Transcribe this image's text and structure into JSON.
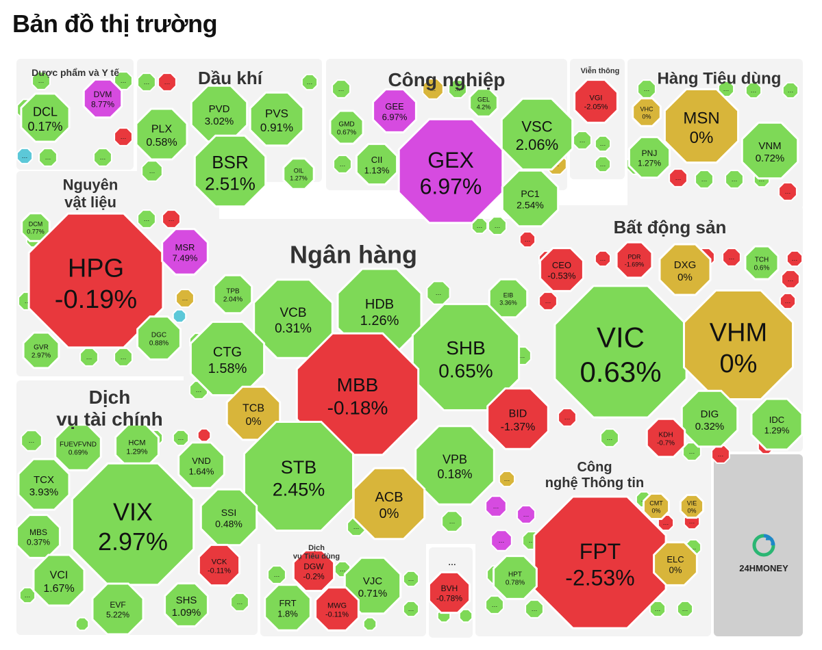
{
  "page_title": "Bản đồ thị trường",
  "logo_text": "24HMONEY",
  "colors": {
    "up": "#7ed957",
    "down": "#e8383d",
    "flat": "#d8b53a",
    "ceiling": "#d64be0",
    "floor": "#5cc8d8",
    "background": "#f3f3f3",
    "border": "#ffffff"
  },
  "chart_data": {
    "type": "treemap",
    "title": "Bản đồ thị trường",
    "value_unit": "%",
    "sectors": [
      {
        "name": "Dược phẩm và Y tế",
        "tickers": [
          {
            "symbol": "DCL",
            "change": 0.17
          },
          {
            "symbol": "DVM",
            "change": 8.77
          }
        ]
      },
      {
        "name": "Dầu khí",
        "tickers": [
          {
            "symbol": "PVD",
            "change": 3.02
          },
          {
            "symbol": "PVS",
            "change": 0.91
          },
          {
            "symbol": "PLX",
            "change": 0.58
          },
          {
            "symbol": "BSR",
            "change": 2.51
          },
          {
            "symbol": "OIL",
            "change": 1.27
          }
        ]
      },
      {
        "name": "Công nghiệp",
        "tickers": [
          {
            "symbol": "GEE",
            "change": 6.97
          },
          {
            "symbol": "GEL",
            "change": 4.2
          },
          {
            "symbol": "GMD",
            "change": 0.67
          },
          {
            "symbol": "CII",
            "change": 1.13
          },
          {
            "symbol": "GEX",
            "change": 6.97
          },
          {
            "symbol": "VSC",
            "change": 2.06
          },
          {
            "symbol": "PC1",
            "change": 2.54
          }
        ]
      },
      {
        "name": "Viễn thông",
        "tickers": [
          {
            "symbol": "VGI",
            "change": -2.05
          }
        ]
      },
      {
        "name": "Hàng Tiêu dùng",
        "tickers": [
          {
            "symbol": "VHC",
            "change": 0
          },
          {
            "symbol": "MSN",
            "change": 0
          },
          {
            "symbol": "PNJ",
            "change": 1.27
          },
          {
            "symbol": "VNM",
            "change": 0.72
          }
        ]
      },
      {
        "name": "Nguyên vật liệu",
        "tickers": [
          {
            "symbol": "DCM",
            "change": 0.77
          },
          {
            "symbol": "HPG",
            "change": -0.19
          },
          {
            "symbol": "MSR",
            "change": 7.49
          },
          {
            "symbol": "GVR",
            "change": 2.97
          },
          {
            "symbol": "DGC",
            "change": 0.88
          }
        ]
      },
      {
        "name": "Ngân hàng",
        "tickers": [
          {
            "symbol": "TPB",
            "change": 2.04
          },
          {
            "symbol": "VCB",
            "change": 0.31
          },
          {
            "symbol": "HDB",
            "change": 1.26
          },
          {
            "symbol": "EIB",
            "change": 3.36
          },
          {
            "symbol": "CTG",
            "change": 1.58
          },
          {
            "symbol": "SHB",
            "change": 0.65
          },
          {
            "symbol": "MBB",
            "change": -0.18
          },
          {
            "symbol": "TCB",
            "change": 0
          },
          {
            "symbol": "BID",
            "change": -1.37
          },
          {
            "symbol": "STB",
            "change": 2.45
          },
          {
            "symbol": "VPB",
            "change": 0.18
          },
          {
            "symbol": "ACB",
            "change": 0
          }
        ]
      },
      {
        "name": "Bất động sản",
        "tickers": [
          {
            "symbol": "CEO",
            "change": -0.53
          },
          {
            "symbol": "PDR",
            "change": -1.69
          },
          {
            "symbol": "DXG",
            "change": 0
          },
          {
            "symbol": "TCH",
            "change": 0.6
          },
          {
            "symbol": "VIC",
            "change": 0.63
          },
          {
            "symbol": "VHM",
            "change": 0
          },
          {
            "symbol": "DIG",
            "change": 0.32
          },
          {
            "symbol": "KDH",
            "change": -0.7
          },
          {
            "symbol": "IDC",
            "change": 1.29
          }
        ]
      },
      {
        "name": "Dịch vụ tài chính",
        "tickers": [
          {
            "symbol": "FUEVFVND",
            "change": 0.69
          },
          {
            "symbol": "HCM",
            "change": 1.29
          },
          {
            "symbol": "VND",
            "change": 1.64
          },
          {
            "symbol": "TCX",
            "change": 3.93
          },
          {
            "symbol": "VIX",
            "change": 2.97
          },
          {
            "symbol": "SSI",
            "change": 0.48
          },
          {
            "symbol": "MBS",
            "change": 0.37
          },
          {
            "symbol": "VCK",
            "change": -0.11
          },
          {
            "symbol": "VCI",
            "change": 1.67
          },
          {
            "symbol": "EVF",
            "change": 5.22
          },
          {
            "symbol": "SHS",
            "change": 1.09
          }
        ]
      },
      {
        "name": "Dịch vụ Tiêu dùng",
        "tickers": [
          {
            "symbol": "DGW",
            "change": -0.2
          },
          {
            "symbol": "VJC",
            "change": 0.71
          },
          {
            "symbol": "FRT",
            "change": 1.8
          },
          {
            "symbol": "MWG",
            "change": -0.11
          }
        ]
      },
      {
        "name": "…",
        "tickers": [
          {
            "symbol": "BVH",
            "change": -0.78
          }
        ]
      },
      {
        "name": "Công nghệ Thông tin",
        "tickers": [
          {
            "symbol": "CMT",
            "change": 0
          },
          {
            "symbol": "VIE",
            "change": 0
          },
          {
            "symbol": "FPT",
            "change": -2.53
          },
          {
            "symbol": "HPT",
            "change": 0.78
          },
          {
            "symbol": "ELC",
            "change": 0
          }
        ]
      }
    ]
  }
}
